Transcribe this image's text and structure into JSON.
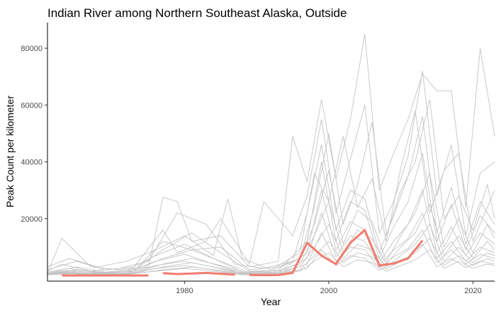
{
  "chart_data": {
    "type": "line",
    "title": "Indian River among Northern Southeast Alaska, Outside",
    "xlabel": "Year",
    "ylabel": "Peak Count per kilometer",
    "xlim": [
      1961,
      2023
    ],
    "ylim": [
      -2000,
      89000
    ],
    "x_ticks": [
      1980,
      2000,
      2020
    ],
    "y_ticks": [
      20000,
      40000,
      60000,
      80000
    ],
    "y_tick_labels": [
      "20000",
      "40000",
      "60000",
      "80000"
    ],
    "grid": false,
    "legend": "none",
    "colors": {
      "highlight": "#f07c6e",
      "background": "#c4c4c4",
      "axis": "#000000"
    },
    "highlight_series": {
      "name": "Indian River",
      "x": [
        1963,
        1965,
        1967,
        1969,
        1971,
        1973,
        1975,
        1977,
        1979,
        1981,
        1983,
        1985,
        1987,
        1989,
        1991,
        1993,
        1995,
        1997,
        1999,
        2001,
        2003,
        2005,
        2007,
        2009,
        2011,
        2013
      ],
      "y": [
        0,
        0,
        0,
        0,
        0,
        0,
        0,
        800,
        500,
        700,
        900,
        600,
        300,
        200,
        100,
        150,
        900,
        11500,
        7000,
        4000,
        11500,
        16000,
        3500,
        4200,
        6000,
        12300
      ],
      "gaps_after": [
        1975,
        1987
      ]
    },
    "background_series": [
      {
        "x": [
          1961,
          1963,
          1967,
          1971,
          1975,
          1977,
          1979,
          1981,
          1985,
          1989,
          1993,
          1995,
          1997,
          1999,
          2001,
          2003,
          2005,
          2007,
          2009,
          2011,
          2013,
          2015,
          2017,
          2019,
          2021,
          2023
        ],
        "y": [
          1000,
          13000,
          3000,
          2000,
          3000,
          27500,
          26000,
          12000,
          14000,
          3000,
          5000,
          49000,
          33000,
          62000,
          34000,
          55000,
          85000,
          30000,
          43000,
          55000,
          71000,
          65000,
          65000,
          24000,
          80000,
          49000
        ]
      },
      {
        "x": [
          1961,
          1965,
          1969,
          1973,
          1977,
          1979,
          1983,
          1985,
          1989,
          1991,
          1995,
          1997,
          1999,
          2001,
          2003,
          2005,
          2007,
          2009,
          2011,
          2013,
          2015,
          2017,
          2019,
          2021,
          2023
        ],
        "y": [
          2000,
          5000,
          2000,
          3000,
          16000,
          8000,
          12000,
          20000,
          4000,
          26000,
          14000,
          28000,
          55000,
          22000,
          41000,
          60000,
          15000,
          26000,
          42000,
          72000,
          28000,
          46000,
          14000,
          36000,
          40000
        ]
      },
      {
        "x": [
          1961,
          1964,
          1968,
          1972,
          1976,
          1980,
          1984,
          1986,
          1988,
          1992,
          1996,
          1998,
          2000,
          2002,
          2004,
          2006,
          2008,
          2010,
          2012,
          2014,
          2016,
          2018,
          2020,
          2022,
          2023
        ],
        "y": [
          3000,
          6000,
          3000,
          5000,
          9000,
          14000,
          7000,
          27000,
          6000,
          2000,
          8000,
          36000,
          26000,
          49000,
          24000,
          34000,
          12000,
          38000,
          58000,
          22000,
          37000,
          43000,
          12000,
          24000,
          30000
        ]
      },
      {
        "x": [
          1961,
          1965,
          1969,
          1973,
          1977,
          1981,
          1985,
          1989,
          1993,
          1996,
          1998,
          2000,
          2002,
          2004,
          2006,
          2008,
          2010,
          2012,
          2014,
          2016,
          2018,
          2020,
          2022,
          2023
        ],
        "y": [
          500,
          2000,
          1000,
          1500,
          12000,
          9000,
          10000,
          2000,
          3000,
          6000,
          24000,
          50000,
          18000,
          32000,
          54000,
          14000,
          30000,
          40000,
          62000,
          20000,
          28000,
          16000,
          32000,
          20000
        ]
      },
      {
        "x": [
          1961,
          1963,
          1967,
          1971,
          1975,
          1979,
          1983,
          1987,
          1991,
          1995,
          1997,
          1999,
          2001,
          2003,
          2005,
          2007,
          2009,
          2011,
          2013,
          2015,
          2017,
          2019,
          2021,
          2023
        ],
        "y": [
          1500,
          4000,
          1500,
          2500,
          5000,
          22000,
          18000,
          4000,
          2500,
          5000,
          22000,
          46000,
          16000,
          30000,
          27000,
          8000,
          21000,
          35000,
          56000,
          15000,
          31000,
          11000,
          26000,
          18000
        ]
      },
      {
        "x": [
          1961,
          1965,
          1969,
          1973,
          1977,
          1981,
          1985,
          1989,
          1993,
          1997,
          1999,
          2001,
          2003,
          2005,
          2007,
          2009,
          2011,
          2013,
          2015,
          2017,
          2019,
          2021,
          2023
        ],
        "y": [
          800,
          3000,
          1200,
          2000,
          9000,
          15000,
          8000,
          1500,
          1800,
          12000,
          40000,
          12000,
          26000,
          23000,
          6000,
          17000,
          26000,
          43000,
          12000,
          25000,
          9000,
          21000,
          15000
        ]
      },
      {
        "x": [
          1961,
          1964,
          1968,
          1972,
          1976,
          1980,
          1984,
          1988,
          1992,
          1996,
          1998,
          2000,
          2002,
          2004,
          2006,
          2008,
          2010,
          2012,
          2014,
          2016,
          2018,
          2020,
          2022,
          2023
        ],
        "y": [
          1200,
          2500,
          1000,
          1800,
          7000,
          11000,
          6000,
          1200,
          1500,
          6000,
          18000,
          37000,
          11000,
          23000,
          19000,
          5000,
          14000,
          22000,
          36000,
          10000,
          20000,
          8000,
          18000,
          13000
        ]
      },
      {
        "x": [
          1961,
          1965,
          1969,
          1973,
          1977,
          1981,
          1985,
          1989,
          1993,
          1997,
          1999,
          2001,
          2003,
          2005,
          2007,
          2009,
          2011,
          2013,
          2015,
          2017,
          2019,
          2021,
          2023
        ],
        "y": [
          600,
          2000,
          800,
          1500,
          6000,
          9000,
          5000,
          1000,
          1200,
          8000,
          30000,
          9000,
          19000,
          16000,
          4500,
          12000,
          18000,
          30000,
          8000,
          17000,
          7000,
          15000,
          11000
        ]
      },
      {
        "x": [
          1961,
          1964,
          1968,
          1972,
          1976,
          1980,
          1984,
          1988,
          1992,
          1996,
          1998,
          2000,
          2002,
          2004,
          2006,
          2008,
          2010,
          2012,
          2014,
          2016,
          2018,
          2020,
          2022,
          2023
        ],
        "y": [
          900,
          1800,
          700,
          1300,
          5000,
          7500,
          4000,
          800,
          1000,
          4000,
          14000,
          26000,
          8000,
          16000,
          13000,
          4000,
          10000,
          15000,
          25000,
          7000,
          14000,
          6000,
          12000,
          9000
        ]
      },
      {
        "x": [
          1961,
          1965,
          1969,
          1973,
          1977,
          1981,
          1985,
          1989,
          1993,
          1997,
          1999,
          2001,
          2003,
          2005,
          2007,
          2009,
          2011,
          2013,
          2015,
          2017,
          2019,
          2021,
          2023
        ],
        "y": [
          400,
          1500,
          600,
          1000,
          4000,
          6000,
          3500,
          700,
          800,
          6000,
          22000,
          6500,
          14000,
          12000,
          3500,
          9000,
          13000,
          22000,
          6000,
          12000,
          5000,
          10000,
          8000
        ]
      },
      {
        "x": [
          1961,
          1964,
          1968,
          1972,
          1976,
          1980,
          1984,
          1988,
          1992,
          1996,
          1998,
          2000,
          2002,
          2004,
          2006,
          2008,
          2010,
          2012,
          2014,
          2016,
          2018,
          2020,
          2022,
          2023
        ],
        "y": [
          700,
          1300,
          500,
          900,
          3500,
          5000,
          3000,
          600,
          700,
          3000,
          10000,
          18000,
          6000,
          11000,
          9000,
          3000,
          7000,
          11000,
          18000,
          5000,
          10000,
          4500,
          8000,
          7000
        ]
      },
      {
        "x": [
          1961,
          1965,
          1969,
          1973,
          1977,
          1981,
          1985,
          1989,
          1993,
          1997,
          1999,
          2001,
          2003,
          2005,
          2007,
          2009,
          2011,
          2013,
          2015,
          2017,
          2019,
          2021,
          2023
        ],
        "y": [
          300,
          1000,
          400,
          800,
          3000,
          4500,
          2500,
          500,
          600,
          4000,
          15000,
          5000,
          10000,
          9000,
          2500,
          6500,
          9500,
          16000,
          4500,
          9000,
          4000,
          7500,
          6000
        ]
      },
      {
        "x": [
          1961,
          1964,
          1968,
          1972,
          1976,
          1980,
          1984,
          1988,
          1992,
          1996,
          1998,
          2000,
          2002,
          2004,
          2006,
          2008,
          2010,
          2012,
          2014,
          2016,
          2018,
          2020,
          2022,
          2023
        ],
        "y": [
          500,
          1000,
          400,
          700,
          2500,
          3500,
          2000,
          400,
          500,
          2000,
          7000,
          12000,
          4500,
          8000,
          6500,
          2200,
          5000,
          8000,
          13000,
          3500,
          7000,
          3500,
          6000,
          5000
        ]
      },
      {
        "x": [
          1961,
          1965,
          1969,
          1973,
          1977,
          1981,
          1985,
          1989,
          1993,
          1997,
          1999,
          2001,
          2003,
          2005,
          2007,
          2009,
          2011,
          2013,
          2015,
          2017,
          2019,
          2021,
          2023
        ],
        "y": [
          200,
          700,
          300,
          600,
          2000,
          3000,
          1800,
          300,
          400,
          2500,
          9000,
          3500,
          7000,
          6000,
          1800,
          4500,
          6500,
          11000,
          3000,
          6000,
          2800,
          5000,
          4000
        ]
      },
      {
        "x": [
          1961,
          1964,
          1968,
          1972,
          1976,
          1980,
          1984,
          1988,
          1992,
          1996,
          1998,
          2000,
          2002,
          2004,
          2006,
          2008,
          2010,
          2012,
          2014,
          2016,
          2018,
          2020,
          2022,
          2023
        ],
        "y": [
          300,
          600,
          250,
          500,
          1500,
          2500,
          1500,
          250,
          300,
          1500,
          5000,
          8000,
          3000,
          5500,
          4500,
          1500,
          3500,
          5500,
          9000,
          2500,
          5000,
          2500,
          4000,
          3500
        ]
      }
    ]
  }
}
